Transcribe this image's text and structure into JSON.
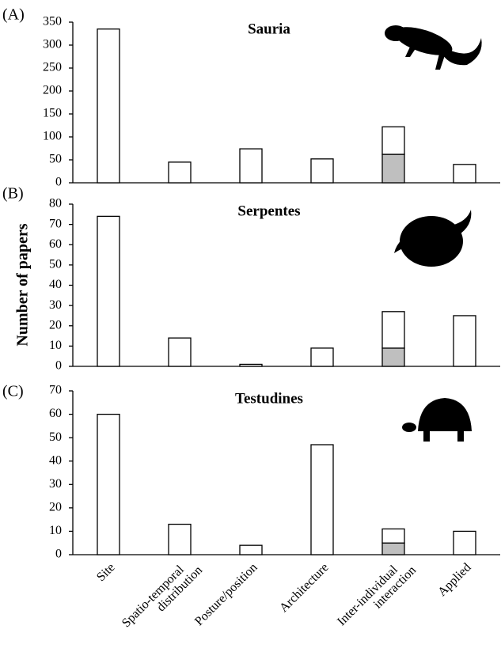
{
  "chart_data": [
    {
      "type": "bar",
      "label": "(A)",
      "title": "Sauria",
      "series": [
        {
          "color": "#bfbfbf",
          "values": [
            null,
            null,
            null,
            null,
            62,
            null
          ]
        },
        {
          "color": "#ffffff",
          "values": [
            335,
            45,
            74,
            52,
            60,
            40
          ]
        }
      ],
      "ylim": [
        0,
        350
      ],
      "yticks": [
        0,
        50,
        100,
        150,
        200,
        250,
        300,
        350
      ]
    },
    {
      "type": "bar",
      "label": "(B)",
      "title": "Serpentes",
      "y_label": "Number of papers",
      "series": [
        {
          "color": "#bfbfbf",
          "values": [
            null,
            null,
            null,
            null,
            9,
            null
          ]
        },
        {
          "color": "#ffffff",
          "values": [
            74,
            14,
            1,
            9,
            18,
            25
          ]
        }
      ],
      "ylim": [
        0,
        80
      ],
      "yticks": [
        0,
        10,
        20,
        30,
        40,
        50,
        60,
        70,
        80
      ]
    },
    {
      "type": "bar",
      "label": "(C)",
      "title": "Testudines",
      "categories": [
        "Site",
        "Spatio-temporal distribution",
        "Posture/position",
        "Architecture",
        "Inter-individual interaction",
        "Applied"
      ],
      "series": [
        {
          "color": "#bfbfbf",
          "values": [
            null,
            null,
            null,
            null,
            5,
            null
          ]
        },
        {
          "color": "#ffffff",
          "values": [
            60,
            13,
            4,
            47,
            6,
            10
          ]
        }
      ],
      "ylim": [
        0,
        70
      ],
      "yticks": [
        0,
        10,
        20,
        30,
        40,
        50,
        60,
        70
      ]
    }
  ]
}
